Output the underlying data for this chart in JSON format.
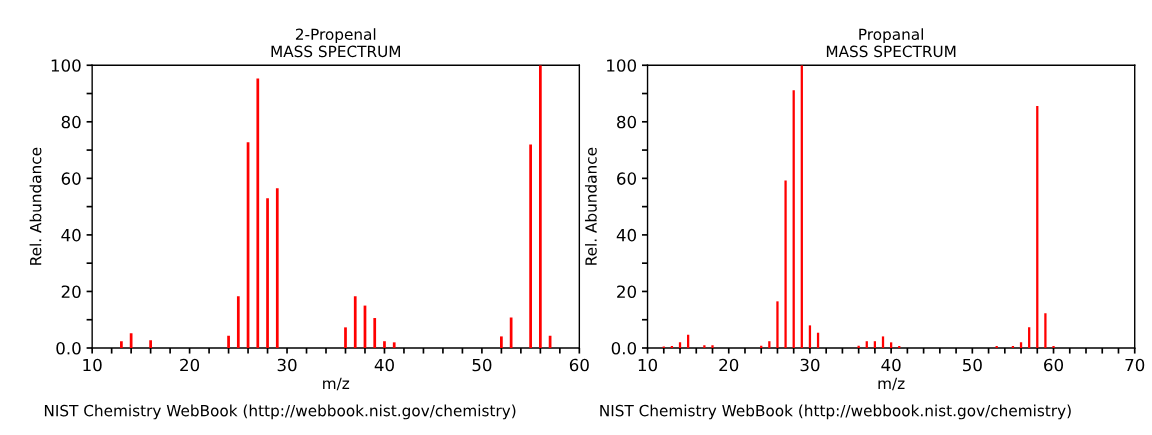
{
  "chart_data": [
    {
      "type": "bar",
      "title": "2-Propenal",
      "subtitle": "MASS SPECTRUM",
      "xlabel": "m/z",
      "ylabel": "Rel. Abundance",
      "x": [
        13,
        14,
        16,
        24,
        25,
        26,
        27,
        28,
        29,
        36,
        37,
        38,
        39,
        40,
        41,
        52,
        53,
        55,
        56,
        57
      ],
      "values": [
        2.4,
        5.2,
        2.7,
        4.3,
        18.3,
        72.8,
        95.3,
        53,
        56.5,
        7.3,
        18.3,
        15,
        10.6,
        2.4,
        2,
        4.1,
        10.8,
        72,
        100,
        4.3
      ],
      "color": "#ff0000",
      "xlim": [
        10,
        60
      ],
      "xticks": [
        10,
        {
          "value": 12,
          "label": null
        },
        {
          "value": 14,
          "label": null
        },
        {
          "value": 16,
          "label": null
        },
        {
          "value": 18,
          "label": null
        },
        20,
        {
          "value": 22,
          "label": null
        },
        {
          "value": 24,
          "label": null
        },
        {
          "value": 26,
          "label": null
        },
        {
          "value": 28,
          "label": null
        },
        30,
        {
          "value": 32,
          "label": null
        },
        {
          "value": 34,
          "label": null
        },
        {
          "value": 36,
          "label": null
        },
        {
          "value": 38,
          "label": null
        },
        40,
        {
          "value": 42,
          "label": null
        },
        {
          "value": 44,
          "label": null
        },
        {
          "value": 46,
          "label": null
        },
        {
          "value": 48,
          "label": null
        },
        50,
        {
          "value": 52,
          "label": null
        },
        {
          "value": 54,
          "label": null
        },
        {
          "value": 56,
          "label": null
        },
        {
          "value": 58,
          "label": null
        },
        60
      ],
      "ylim": [
        0,
        100
      ],
      "yticks": [
        {
          "value": 0,
          "label": "0.0"
        },
        {
          "value": 10,
          "label": null
        },
        20,
        {
          "value": 30,
          "label": null
        },
        40,
        {
          "value": 50,
          "label": null
        },
        60,
        {
          "value": 70,
          "label": null
        },
        80,
        {
          "value": 90,
          "label": null
        },
        100
      ],
      "grid": false,
      "annotations": [
        "NIST Chemistry WebBook (http://webbook.nist.gov/chemistry)"
      ]
    },
    {
      "type": "bar",
      "title": "Propanal",
      "subtitle": "MASS SPECTRUM",
      "xlabel": "m/z",
      "ylabel": "Rel. Abundance",
      "x": [
        12,
        13,
        14,
        15,
        17,
        18,
        24,
        25,
        26,
        27,
        28,
        29,
        30,
        31,
        36,
        37,
        38,
        39,
        40,
        41,
        53,
        55,
        56,
        57,
        58,
        59,
        60
      ],
      "values": [
        0.5,
        0.7,
        2,
        4.7,
        1,
        1,
        0.8,
        2.4,
        16.5,
        59.2,
        91.2,
        100,
        8,
        5.4,
        0.8,
        2.4,
        2.4,
        4.1,
        2,
        0.7,
        0.7,
        0.7,
        2,
        7.3,
        85.6,
        12.3,
        0.7
      ],
      "color": "#ff0000",
      "xlim": [
        10,
        70
      ],
      "xticks": [
        10,
        {
          "value": 12,
          "label": null
        },
        {
          "value": 14,
          "label": null
        },
        {
          "value": 16,
          "label": null
        },
        {
          "value": 18,
          "label": null
        },
        20,
        {
          "value": 22,
          "label": null
        },
        {
          "value": 24,
          "label": null
        },
        {
          "value": 26,
          "label": null
        },
        {
          "value": 28,
          "label": null
        },
        30,
        {
          "value": 32,
          "label": null
        },
        {
          "value": 34,
          "label": null
        },
        {
          "value": 36,
          "label": null
        },
        {
          "value": 38,
          "label": null
        },
        40,
        {
          "value": 42,
          "label": null
        },
        {
          "value": 44,
          "label": null
        },
        {
          "value": 46,
          "label": null
        },
        {
          "value": 48,
          "label": null
        },
        50,
        {
          "value": 52,
          "label": null
        },
        {
          "value": 54,
          "label": null
        },
        {
          "value": 56,
          "label": null
        },
        {
          "value": 58,
          "label": null
        },
        60,
        {
          "value": 62,
          "label": null
        },
        {
          "value": 64,
          "label": null
        },
        {
          "value": 66,
          "label": null
        },
        {
          "value": 68,
          "label": null
        },
        70
      ],
      "ylim": [
        0,
        100
      ],
      "yticks": [
        {
          "value": 0,
          "label": "0.0"
        },
        {
          "value": 10,
          "label": null
        },
        20,
        {
          "value": 30,
          "label": null
        },
        40,
        {
          "value": 50,
          "label": null
        },
        60,
        {
          "value": 70,
          "label": null
        },
        80,
        {
          "value": 90,
          "label": null
        },
        100
      ],
      "grid": false,
      "annotations": [
        "NIST Chemistry WebBook (http://webbook.nist.gov/chemistry)"
      ]
    }
  ]
}
